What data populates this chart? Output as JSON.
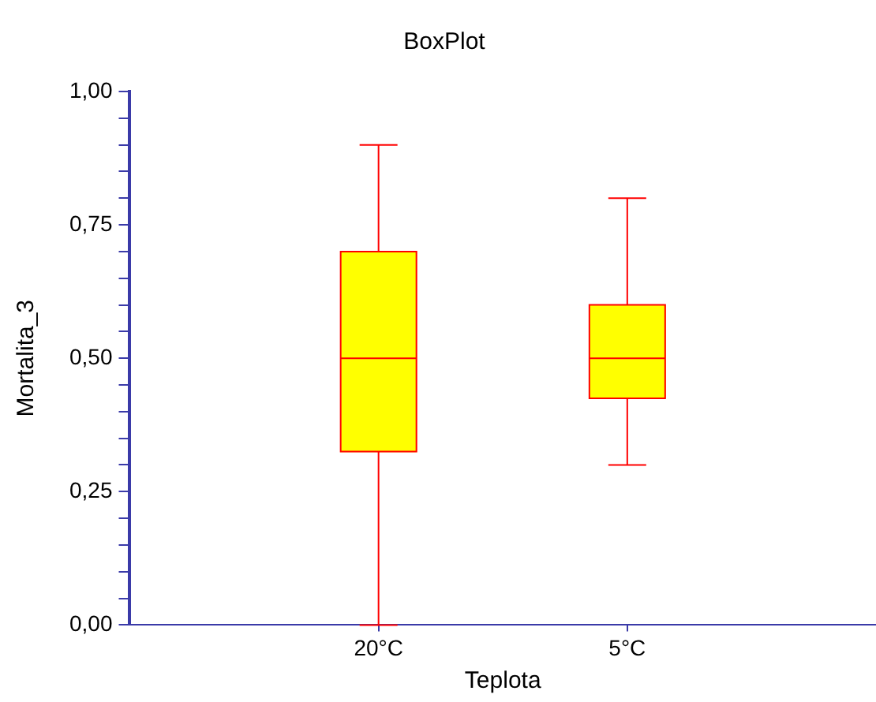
{
  "chart_data": {
    "type": "box",
    "title": "BoxPlot",
    "xlabel": "Teplota",
    "ylabel": "Mortalita_3",
    "categories": [
      "20°C",
      "5°C"
    ],
    "boxes": [
      {
        "low": 0,
        "q1": 0.325,
        "median": 0.5,
        "q3": 0.7,
        "high": 0.9
      },
      {
        "low": 0.3,
        "q1": 0.425,
        "median": 0.5,
        "q3": 0.6,
        "high": 0.8
      }
    ],
    "color": "#ffff00",
    "ylim": [
      0,
      1
    ],
    "yticks": [
      {
        "value": 0,
        "label": "0,00"
      },
      {
        "value": 0.05,
        "label": null
      },
      {
        "value": 0.1,
        "label": null
      },
      {
        "value": 0.15,
        "label": null
      },
      {
        "value": 0.2,
        "label": null
      },
      {
        "value": 0.25,
        "label": "0,25"
      },
      {
        "value": 0.3,
        "label": null
      },
      {
        "value": 0.35,
        "label": null
      },
      {
        "value": 0.4,
        "label": null
      },
      {
        "value": 0.45,
        "label": null
      },
      {
        "value": 0.5,
        "label": "0,50"
      },
      {
        "value": 0.55,
        "label": null
      },
      {
        "value": 0.6,
        "label": null
      },
      {
        "value": 0.65,
        "label": null
      },
      {
        "value": 0.7,
        "label": null
      },
      {
        "value": 0.75,
        "label": "0,75"
      },
      {
        "value": 0.8,
        "label": null
      },
      {
        "value": 0.85,
        "label": null
      },
      {
        "value": 0.9,
        "label": null
      },
      {
        "value": 0.95,
        "label": null
      },
      {
        "value": 1,
        "label": "1,00"
      }
    ],
    "grid": false,
    "legend": false
  }
}
